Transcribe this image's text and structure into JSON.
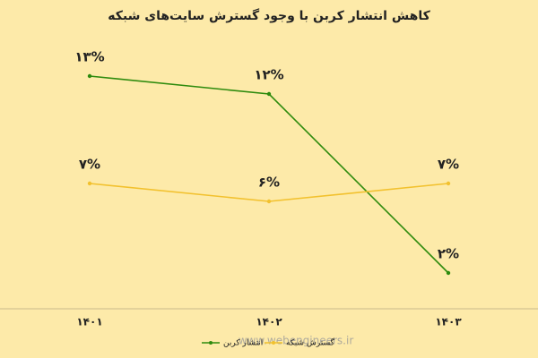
{
  "chart_data": {
    "type": "line",
    "title": "کاهش انتشار کربن با وجود گسترش سایت‌های شبکه",
    "categories": [
      "۱۴۰۱",
      "۱۴۰۲",
      "۱۴۰۳"
    ],
    "series": [
      {
        "name": "انتشار کربن",
        "color": "#2e8b0e",
        "values": [
          13,
          12,
          2
        ],
        "value_labels": [
          "۱۳%",
          "۱۲%",
          "۲%"
        ]
      },
      {
        "name": "گسترش شبکه",
        "color": "#f2c12e",
        "values": [
          7,
          6,
          7
        ],
        "value_labels": [
          "۷%",
          "۶%",
          "۷%"
        ]
      }
    ],
    "watermark": "www.webengineers.ir"
  }
}
